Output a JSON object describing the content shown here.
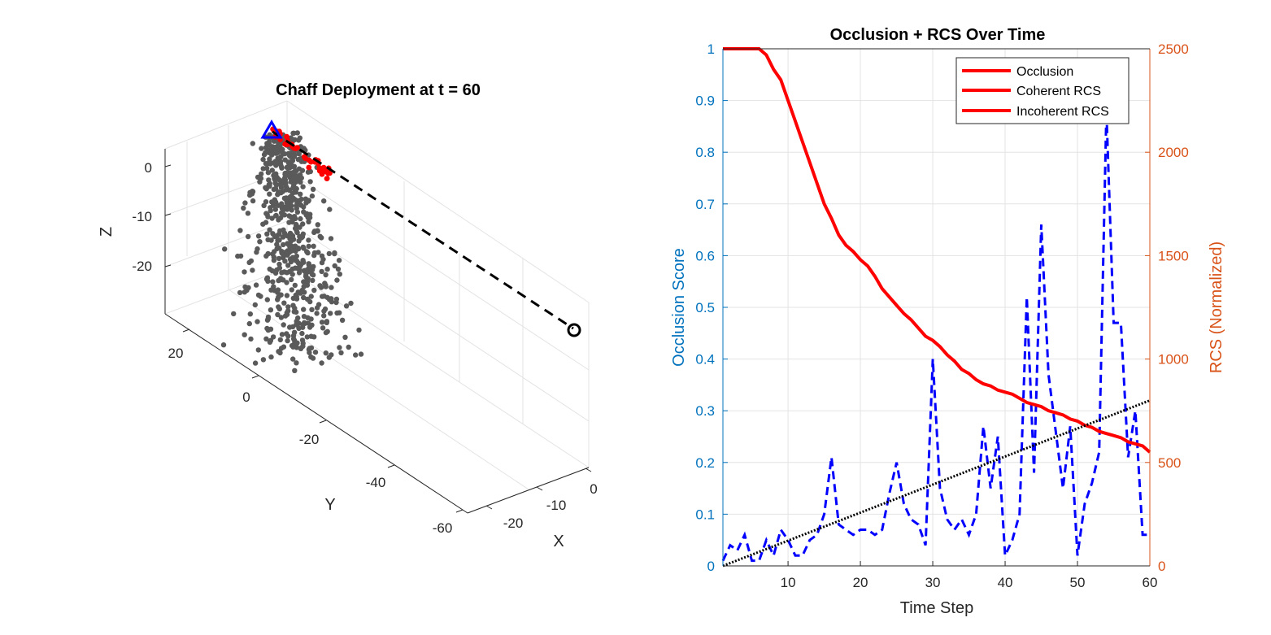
{
  "colors": {
    "axis_gray": "#262626",
    "grid": "#e3e3e3",
    "left_axis_blue": "#0072bd",
    "right_axis_orange": "#d95319",
    "chaff_gray": "#5a5a5a",
    "chaff_red": "#ff0000",
    "radar_marker": "#0000ff",
    "line_red": "#ff0000",
    "line_blue": "#0000ff",
    "trend_black": "#000000"
  },
  "chart_data": [
    {
      "type": "scatter",
      "title": "Chaff Deployment at t = 60",
      "xlabel": "X",
      "ylabel": "Y",
      "zlabel": "Z",
      "x_ticks": [
        "-20",
        "-10",
        "0"
      ],
      "y_ticks": [
        "20",
        "0",
        "-20",
        "-40",
        "-60"
      ],
      "z_ticks": [
        "0",
        "-10",
        "-20"
      ],
      "xlim": [
        -30,
        5
      ],
      "ylim": [
        -65,
        30
      ],
      "zlim": [
        -27,
        5
      ],
      "grid": true,
      "series": [
        {
          "marker": "triangle",
          "color": "blue",
          "points": [
            [
              0,
              25,
              8
            ]
          ]
        },
        {
          "marker": "circle",
          "color": "black",
          "points": [
            [
              -28,
              -60,
              0
            ]
          ]
        },
        {
          "line": "dashed",
          "color": "black",
          "points": [
            [
              0,
              25,
              8
            ],
            [
              -28,
              -60,
              0
            ]
          ]
        }
      ],
      "chaff_cloud": {
        "gray_count": 650,
        "red_count": 40,
        "center_screen_note": "cloud near origin below radar"
      }
    },
    {
      "type": "line",
      "title": "Occlusion + RCS Over Time",
      "xlabel": "Time Step",
      "ylabel_left": "Occlusion Score",
      "ylabel_right": "RCS (Normalized)",
      "xlim": [
        1,
        60
      ],
      "ylim_left": [
        0,
        1
      ],
      "ylim_right": [
        0,
        2500
      ],
      "x_ticks": [
        "10",
        "20",
        "30",
        "40",
        "50",
        "60"
      ],
      "y_left_ticks": [
        "0",
        "0.1",
        "0.2",
        "0.3",
        "0.4",
        "0.5",
        "0.6",
        "0.7",
        "0.8",
        "0.9",
        "1"
      ],
      "y_right_ticks": [
        "0",
        "500",
        "1000",
        "1500",
        "2000",
        "2500"
      ],
      "grid": true,
      "legend_position": "top-right",
      "legend": [
        "Occlusion",
        "Coherent RCS",
        "Incoherent RCS"
      ],
      "series": [
        {
          "name": "Occlusion",
          "axis": "left",
          "style": "dashed",
          "color": "blue",
          "x": [
            1,
            2,
            3,
            4,
            5,
            6,
            7,
            8,
            9,
            10,
            11,
            12,
            13,
            14,
            15,
            16,
            17,
            18,
            19,
            20,
            21,
            22,
            23,
            24,
            25,
            26,
            27,
            28,
            29,
            30,
            31,
            32,
            33,
            34,
            35,
            36,
            37,
            38,
            39,
            40,
            41,
            42,
            43,
            44,
            45,
            46,
            47,
            48,
            49,
            50,
            51,
            52,
            53,
            54,
            55,
            56,
            57,
            58,
            59,
            60
          ],
          "y": [
            0.01,
            0.04,
            0.03,
            0.06,
            0.01,
            0.01,
            0.05,
            0.02,
            0.07,
            0.05,
            0.02,
            0.02,
            0.05,
            0.06,
            0.1,
            0.21,
            0.08,
            0.07,
            0.06,
            0.07,
            0.07,
            0.06,
            0.07,
            0.14,
            0.2,
            0.12,
            0.09,
            0.08,
            0.04,
            0.4,
            0.15,
            0.09,
            0.07,
            0.09,
            0.06,
            0.1,
            0.27,
            0.15,
            0.25,
            0.02,
            0.05,
            0.1,
            0.52,
            0.18,
            0.66,
            0.37,
            0.26,
            0.15,
            0.27,
            0.02,
            0.12,
            0.16,
            0.22,
            0.88,
            0.47,
            0.47,
            0.21,
            0.3,
            0.06,
            0.06
          ]
        },
        {
          "name": "Coherent RCS",
          "axis": "right",
          "style": "solid",
          "color": "red",
          "x": [
            1,
            2,
            3,
            4,
            5,
            6,
            7,
            8,
            9,
            10,
            11,
            12,
            13,
            14,
            15,
            16,
            17,
            18,
            19,
            20,
            21,
            22,
            23,
            24,
            25,
            26,
            27,
            28,
            29,
            30,
            31,
            32,
            33,
            34,
            35,
            36,
            37,
            38,
            39,
            40,
            41,
            42,
            43,
            44,
            45,
            46,
            47,
            48,
            49,
            50,
            51,
            52,
            53,
            54,
            55,
            56,
            57,
            58,
            59,
            60
          ],
          "y": [
            2500,
            2500,
            2500,
            2500,
            2500,
            2500,
            2470,
            2400,
            2350,
            2250,
            2150,
            2050,
            1950,
            1850,
            1750,
            1680,
            1600,
            1550,
            1520,
            1480,
            1450,
            1400,
            1340,
            1300,
            1260,
            1220,
            1190,
            1150,
            1110,
            1090,
            1060,
            1020,
            990,
            950,
            930,
            900,
            880,
            870,
            850,
            840,
            830,
            810,
            790,
            780,
            770,
            750,
            740,
            730,
            710,
            700,
            680,
            670,
            650,
            640,
            630,
            620,
            600,
            590,
            580,
            550
          ]
        },
        {
          "name": "Incoherent RCS",
          "axis": "right",
          "style": "dotted",
          "color": "black",
          "x": [
            1,
            60
          ],
          "y": [
            0,
            800
          ]
        }
      ]
    }
  ]
}
